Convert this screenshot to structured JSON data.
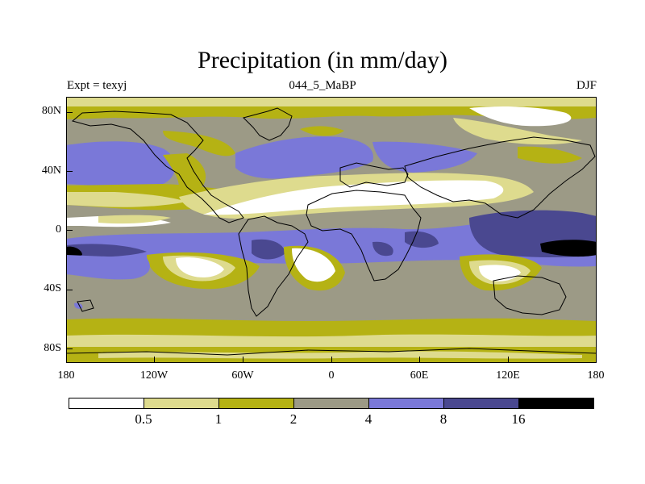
{
  "title": "Precipitation (in mm/day)",
  "subtitle_left": "Expt = texyj",
  "subtitle_center": "044_5_MaBP",
  "subtitle_right": "DJF",
  "lat_labels": [
    "80N",
    "40N",
    "0",
    "40S",
    "80S"
  ],
  "lon_labels": [
    "180",
    "120W",
    "60W",
    "0",
    "60E",
    "120E",
    "180"
  ],
  "colorbar": {
    "labels": [
      "0.5",
      "1",
      "2",
      "4",
      "8",
      "16"
    ],
    "colors": [
      "#ffffff",
      "#dedb8e",
      "#b5b214",
      "#9c9a86",
      "#7a78d8",
      "#4a4890",
      "#000000"
    ]
  },
  "chart_data": {
    "type": "heatmap",
    "title": "Precipitation (in mm/day)",
    "variable": "precipitation",
    "units": "mm/day",
    "experiment": "texyj",
    "period": "044_5_MaBP",
    "season": "DJF",
    "projection": "cylindrical equidistant",
    "lon_range": [
      -180,
      180
    ],
    "lat_range": [
      -90,
      90
    ],
    "contour_levels": [
      0.5,
      1,
      2,
      4,
      8,
      16
    ],
    "xticks": [
      "180",
      "120W",
      "60W",
      "0",
      "60E",
      "120E",
      "180"
    ],
    "yticks": [
      "80N",
      "40N",
      "0",
      "40S",
      "80S"
    ]
  }
}
